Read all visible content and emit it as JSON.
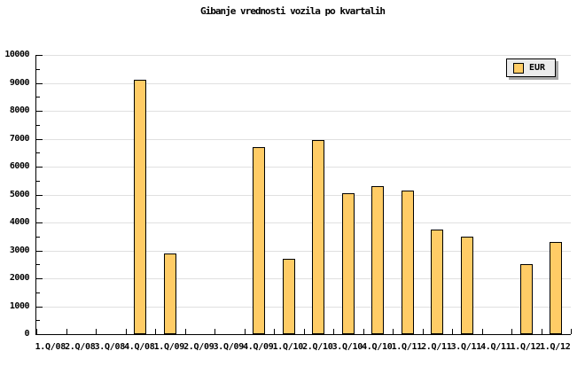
{
  "chart_data": {
    "type": "bar",
    "title": "Gibanje vrednosti vozila po kvartalih",
    "categories": [
      "1.Q/08",
      "2.Q/08",
      "3.Q/08",
      "4.Q/08",
      "1.Q/09",
      "2.Q/09",
      "3.Q/09",
      "4.Q/09",
      "1.Q/10",
      "2.Q/10",
      "3.Q/10",
      "4.Q/10",
      "1.Q/11",
      "2.Q/11",
      "3.Q/11",
      "4.Q/11",
      "1.Q/12",
      "1.Q/12"
    ],
    "series": [
      {
        "name": "EUR",
        "values": [
          null,
          null,
          null,
          9100,
          2900,
          null,
          null,
          6700,
          2700,
          6950,
          5050,
          5300,
          5150,
          3750,
          3500,
          null,
          2500,
          3300
        ]
      }
    ],
    "xlabel": "",
    "ylabel": "",
    "ylim": [
      0,
      10000
    ],
    "ytick_step": 1000,
    "yminor_step": 500,
    "ytick_labels": [
      "0",
      "1000",
      "2000",
      "3000",
      "4000",
      "5000",
      "6000",
      "7000",
      "8000",
      "9000",
      "10000"
    ],
    "grid": true,
    "legend_position": "top-right"
  },
  "colors": {
    "bar_fill": "#FFCC66",
    "bar_border": "#000000",
    "grid": "#E0E0E0",
    "axis": "#000000",
    "background": "#FFFFFF",
    "legend_bg": "#EBEBEB",
    "legend_border": "#000000",
    "legend_shadow": "#A8A8A8"
  }
}
